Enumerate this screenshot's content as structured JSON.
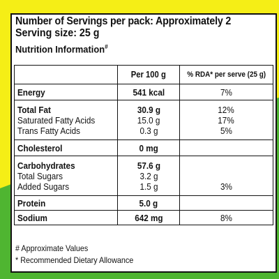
{
  "colors": {
    "yellow": "#f5ee16",
    "green": "#4fb531"
  },
  "header": {
    "servings": "Number of Servings per pack: Approximately 2",
    "serving_size": "Serving size: 25 g",
    "nutrition_info": "Nutrition Information",
    "nutrition_info_mark": "#"
  },
  "table": {
    "columns": [
      "",
      "Per 100 g",
      "% RDA* per serve (25 g)"
    ],
    "rows": {
      "energy": {
        "label": "Energy",
        "per100": "541 kcal",
        "rda": "7%"
      },
      "total_fat": {
        "label": "Total Fat",
        "per100": "30.9 g",
        "rda": "12%"
      },
      "sat_fat": {
        "label": "Saturated Fatty Acids",
        "per100": "15.0 g",
        "rda": "17%"
      },
      "trans_fat": {
        "label": "Trans Fatty Acids",
        "per100": "0.3 g",
        "rda": "5%"
      },
      "cholesterol": {
        "label": "Cholesterol",
        "per100": "0 mg",
        "rda": ""
      },
      "carbs": {
        "label": "Carbohydrates",
        "per100": "57.6 g",
        "rda": ""
      },
      "total_sugars": {
        "label": "Total Sugars",
        "per100": "3.2 g",
        "rda": ""
      },
      "added_sugars": {
        "label": "Added Sugars",
        "per100": "1.5 g",
        "rda": "3%"
      },
      "protein": {
        "label": "Protein",
        "per100": "5.0 g",
        "rda": ""
      },
      "sodium": {
        "label": "Sodium",
        "per100": "642 mg",
        "rda": "8%"
      }
    }
  },
  "footnotes": {
    "approx": "# Approximate Values",
    "rda": "* Recommended Dietary Allowance"
  }
}
